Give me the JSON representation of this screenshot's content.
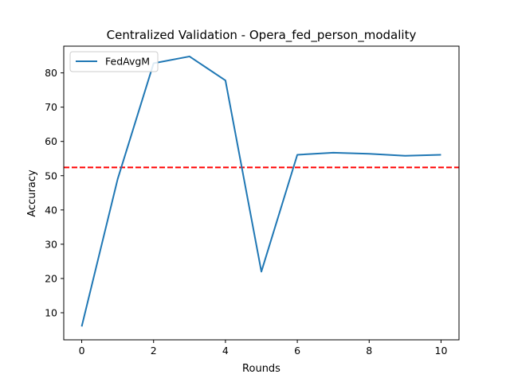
{
  "chart_data": {
    "type": "line",
    "title": "Centralized Validation - Opera_fed_person_modality",
    "xlabel": "Rounds",
    "ylabel": "Accuracy",
    "xlim": [
      -0.5,
      10.5
    ],
    "ylim": [
      2.1,
      87.8
    ],
    "xticks": [
      0,
      2,
      4,
      6,
      8,
      10
    ],
    "yticks": [
      10,
      20,
      30,
      40,
      50,
      60,
      70,
      80
    ],
    "grid": false,
    "legend_position": "top-left",
    "x": [
      0,
      1,
      2,
      3,
      4,
      5,
      6,
      7,
      8,
      9,
      10
    ],
    "series": [
      {
        "name": "FedAvgM",
        "color": "#1f77b4",
        "values": [
          6.0,
          49.0,
          82.8,
          84.8,
          77.8,
          22.0,
          56.1,
          56.7,
          56.4,
          55.8,
          56.1
        ]
      }
    ],
    "reference_line": {
      "y": 52.4,
      "color": "#ff0000",
      "style": "dashed"
    }
  }
}
